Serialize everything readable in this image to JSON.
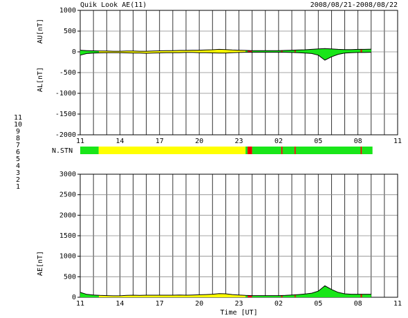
{
  "header": {
    "title": "Quik Look AE(11)",
    "date_range": "2008/08/21-2008/08/22"
  },
  "station_count": {
    "label": "N.STN",
    "legend": [
      {
        "value": 11,
        "color": "#00e0e0"
      },
      {
        "value": 10,
        "color": "#ff00ff"
      },
      {
        "value": 9,
        "color": "#3a0090"
      },
      {
        "value": 8,
        "color": "#ffff00"
      },
      {
        "value": 7,
        "color": "#19e619"
      },
      {
        "value": 6,
        "color": "#ee0000"
      },
      {
        "value": 5,
        "color": "#e0e0e0"
      },
      {
        "value": 4,
        "color": "#a0a0a0"
      },
      {
        "value": 3,
        "color": "#008888"
      },
      {
        "value": 2,
        "color": "#880088"
      },
      {
        "value": 1,
        "color": "#0000ff"
      }
    ],
    "segments": [
      {
        "start": 11,
        "end": 12.4,
        "count": 7
      },
      {
        "start": 12.4,
        "end": 23.5,
        "count": 8
      },
      {
        "start": 23.5,
        "end": 23.65,
        "count": 7
      },
      {
        "start": 23.65,
        "end": 24,
        "count": 6
      },
      {
        "start": 24,
        "end": 26.2,
        "count": 7
      },
      {
        "start": 26.2,
        "end": 26.3,
        "count": 6
      },
      {
        "start": 26.3,
        "end": 27.2,
        "count": 7
      },
      {
        "start": 27.2,
        "end": 27.3,
        "count": 6
      },
      {
        "start": 27.3,
        "end": 32.2,
        "count": 7
      },
      {
        "start": 32.2,
        "end": 32.3,
        "count": 6
      },
      {
        "start": 32.3,
        "end": 33.1,
        "count": 7
      }
    ]
  },
  "chart_data": [
    {
      "type": "area",
      "ylabel_upper": "AU[nT]",
      "ylabel_lower": "AL[nT]",
      "x": [
        11,
        11.5,
        12,
        12.5,
        13,
        13.5,
        14,
        14.5,
        15,
        15.5,
        16,
        16.5,
        17,
        17.5,
        18,
        18.5,
        19,
        19.5,
        20,
        20.5,
        21,
        21.5,
        22,
        22.5,
        23,
        23.5,
        24,
        24.5,
        25,
        25.5,
        26,
        26.5,
        27,
        27.5,
        28,
        28.5,
        29,
        29.5,
        30,
        30.5,
        31,
        31.5,
        32,
        32.5,
        33
      ],
      "series": [
        {
          "name": "AU",
          "color": "#000000",
          "values": [
            40,
            30,
            25,
            20,
            20,
            15,
            15,
            20,
            20,
            15,
            15,
            20,
            25,
            30,
            30,
            35,
            35,
            40,
            40,
            45,
            50,
            60,
            55,
            45,
            40,
            35,
            30,
            30,
            30,
            30,
            30,
            35,
            40,
            45,
            50,
            60,
            70,
            80,
            70,
            60,
            55,
            55,
            60,
            60,
            65
          ]
        },
        {
          "name": "AL",
          "color": "#000000",
          "values": [
            -80,
            -40,
            -30,
            -25,
            -20,
            -20,
            -20,
            -25,
            -30,
            -30,
            -35,
            -30,
            -25,
            -20,
            -20,
            -20,
            -15,
            -15,
            -20,
            -20,
            -25,
            -30,
            -30,
            -20,
            -15,
            -10,
            -10,
            -10,
            -10,
            -10,
            -10,
            -10,
            -15,
            -20,
            -30,
            -40,
            -80,
            -200,
            -120,
            -60,
            -30,
            -20,
            -15,
            -15,
            -10
          ]
        }
      ],
      "xlim": [
        11,
        35
      ],
      "xticks": [
        11,
        14,
        17,
        20,
        23,
        {
          "value": 26,
          "label": "02"
        },
        {
          "value": 29,
          "label": "05"
        },
        {
          "value": 32,
          "label": "08"
        },
        {
          "value": 35,
          "label": "11"
        }
      ],
      "xgrid": [
        12,
        13,
        15,
        16,
        18,
        19,
        21,
        22,
        24,
        25,
        27,
        28,
        30,
        31,
        33,
        34
      ],
      "ylim": [
        -2000,
        1000
      ],
      "yticks": [
        -2000,
        -1500,
        -1000,
        -500,
        0,
        500,
        1000
      ],
      "grid": true
    },
    {
      "type": "area",
      "ylabel": "AE[nT]",
      "xlabel": "Time [UT]",
      "x": [
        11,
        11.5,
        12,
        12.5,
        13,
        13.5,
        14,
        14.5,
        15,
        15.5,
        16,
        16.5,
        17,
        17.5,
        18,
        18.5,
        19,
        19.5,
        20,
        20.5,
        21,
        21.5,
        22,
        22.5,
        23,
        23.5,
        24,
        24.5,
        25,
        25.5,
        26,
        26.5,
        27,
        27.5,
        28,
        28.5,
        29,
        29.5,
        30,
        30.5,
        31,
        31.5,
        32,
        32.5,
        33
      ],
      "series": [
        {
          "name": "AE",
          "color": "#000000",
          "values": [
            120,
            70,
            55,
            45,
            40,
            35,
            35,
            45,
            50,
            45,
            50,
            50,
            50,
            50,
            50,
            55,
            50,
            55,
            60,
            65,
            75,
            90,
            85,
            65,
            55,
            45,
            40,
            40,
            40,
            40,
            40,
            45,
            55,
            65,
            80,
            100,
            150,
            280,
            190,
            120,
            85,
            75,
            75,
            75,
            75
          ]
        }
      ],
      "xlim": [
        11,
        35
      ],
      "xticks": [
        11,
        14,
        17,
        20,
        23,
        {
          "value": 26,
          "label": "02"
        },
        {
          "value": 29,
          "label": "05"
        },
        {
          "value": 32,
          "label": "08"
        },
        {
          "value": 35,
          "label": "11"
        }
      ],
      "xgrid": [
        12,
        13,
        15,
        16,
        18,
        19,
        21,
        22,
        24,
        25,
        27,
        28,
        30,
        31,
        33,
        34
      ],
      "ylim": [
        0,
        3000
      ],
      "yticks": [
        0,
        500,
        1000,
        1500,
        2000,
        2500,
        3000
      ],
      "grid": true
    }
  ]
}
